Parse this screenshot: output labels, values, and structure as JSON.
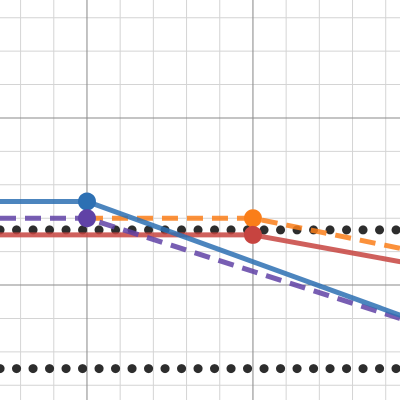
{
  "chart_data": {
    "type": "line",
    "xlim": [
      -2.62,
      9.43
    ],
    "ylim": [
      -3.44,
      8.53
    ],
    "x_gridlines": [
      -2,
      -1,
      0,
      1,
      2,
      3,
      4,
      5,
      6,
      7,
      8,
      9
    ],
    "y_gridlines": [
      -3,
      -2,
      -1,
      0,
      1,
      2,
      3,
      4,
      5,
      6,
      7,
      8
    ],
    "x_major_gridlines": [
      0,
      5
    ],
    "y_major_gridlines": [
      0,
      5
    ],
    "grid": true,
    "series": [
      {
        "color": "#2d2d2d",
        "style": "dotted",
        "x": [
          -2.62,
          9.43
        ],
        "values": [
          1.65,
          1.65
        ]
      },
      {
        "color": "#2d2d2d",
        "style": "dotted",
        "x": [
          -2.62,
          9.43
        ],
        "values": [
          -2.5,
          -2.5
        ]
      },
      {
        "color": "#c74440",
        "style": "solid",
        "x": [
          -2.62,
          5,
          9.43
        ],
        "values": [
          1.5,
          1.5,
          0.7
        ]
      },
      {
        "color": "#fa7e19",
        "style": "dashed",
        "x": [
          0,
          5,
          9.43
        ],
        "values": [
          2.0,
          2.0,
          1.1
        ]
      },
      {
        "color": "#6042a6",
        "style": "dashed",
        "x": [
          -2.62,
          0,
          9.43
        ],
        "values": [
          2.0,
          2.0,
          -1.0
        ]
      },
      {
        "color": "#2d70b3",
        "style": "solid",
        "x": [
          -2.62,
          0,
          9.43
        ],
        "values": [
          2.5,
          2.5,
          -0.9
        ]
      }
    ],
    "points": [
      {
        "x": 0,
        "y": 2.5,
        "color": "#2d70b3"
      },
      {
        "x": 0,
        "y": 2.0,
        "color": "#6042a6"
      },
      {
        "x": 5,
        "y": 2.0,
        "color": "#fa7e19"
      },
      {
        "x": 5,
        "y": 1.5,
        "color": "#c74440"
      }
    ]
  }
}
